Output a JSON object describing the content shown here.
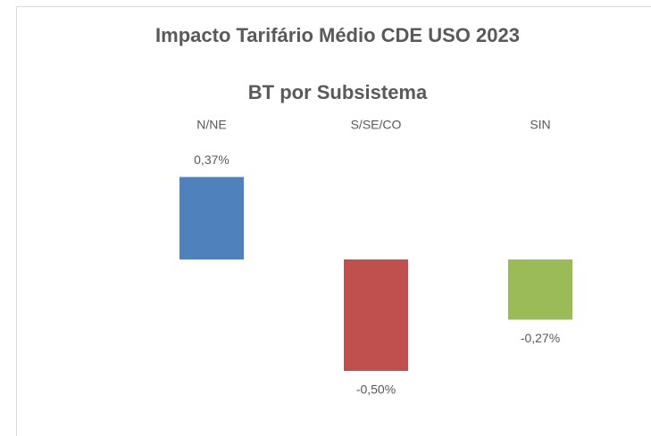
{
  "chart_data": {
    "type": "bar",
    "title": "Impacto Tarifário Médio CDE USO 2023",
    "subtitle": "BT por Subsistema",
    "categories": [
      "N/NE",
      "S/SE/CO",
      "SIN"
    ],
    "values": [
      0.37,
      -0.5,
      -0.27
    ],
    "value_labels": [
      "0,37%",
      "-0,50%",
      "-0,27%"
    ],
    "colors": [
      "#4f81bd",
      "#c0504d",
      "#9bbb59"
    ]
  }
}
